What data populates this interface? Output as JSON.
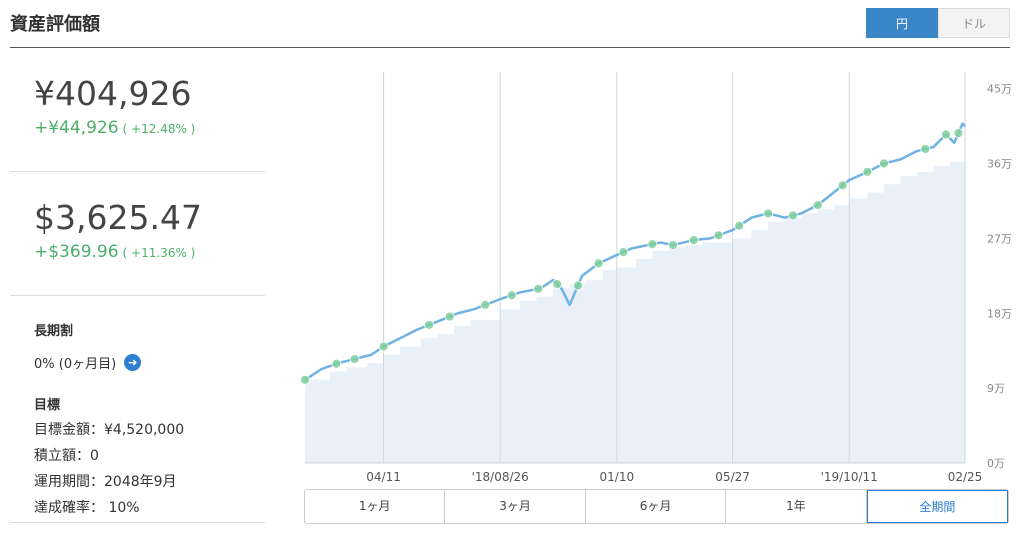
{
  "header": {
    "title": "資産評価額"
  },
  "currency_toggle": {
    "jpy": "円",
    "usd": "ドル",
    "selected": "円"
  },
  "valuation": {
    "jpy": {
      "value": "¥404,926",
      "change": "+¥44,926",
      "pct": "( +12.48% )"
    },
    "usd": {
      "value": "$3,625.47",
      "change": "+$369.96",
      "pct": "( +11.36% )"
    }
  },
  "long_term": {
    "title": "長期割",
    "value": "0% (0ヶ月目)"
  },
  "goal": {
    "title": "目標",
    "amount": "目標金額：¥4,520,000",
    "contribution": "積立額：0",
    "period": "運用期間：2048年9月",
    "probability": "達成確率： 10%"
  },
  "period_tabs": [
    "1ヶ月",
    "3ヶ月",
    "6ヶ月",
    "1年",
    "全期間"
  ],
  "selected_period": "全期間",
  "colors": {
    "accent": "#3a86c8",
    "positive": "#4caf6b",
    "line": "#6fb2e3",
    "area": "#e9f0f8",
    "marker": "#7fcf9a"
  },
  "chart_data": {
    "type": "line",
    "title": "",
    "xlabel": "",
    "ylabel": "",
    "ylim": [
      0,
      470000
    ],
    "y_ticks": [
      0,
      90000,
      180000,
      270000,
      360000,
      450000
    ],
    "y_tick_labels": [
      "0万",
      "9万",
      "18万",
      "27万",
      "36万",
      "45万"
    ],
    "x_ticks": [
      "04/11",
      "'18/08/26",
      "01/10",
      "05/27",
      "'19/10/11",
      "02/25"
    ],
    "x_tick_positions": [
      95,
      236,
      377,
      517,
      658,
      798
    ],
    "x_range": [
      0,
      798
    ],
    "series": [
      {
        "x": [
          0,
          20,
          40,
          60,
          80,
          95,
          115,
          135,
          160,
          185,
          205,
          236,
          260,
          285,
          300,
          310,
          320,
          335,
          355,
          377,
          395,
          415,
          430,
          445,
          470,
          490,
          517,
          540,
          560,
          580,
          600,
          620,
          658,
          680,
          700,
          720,
          740,
          760,
          775,
          785,
          795,
          798
        ],
        "values": [
          100000,
          113000,
          120000,
          125000,
          130000,
          140000,
          150000,
          160000,
          170000,
          180000,
          185000,
          197000,
          205000,
          210000,
          220000,
          210000,
          190000,
          225000,
          240000,
          250000,
          258000,
          262000,
          265000,
          262000,
          268000,
          270000,
          280000,
          295000,
          300000,
          295000,
          300000,
          310000,
          340000,
          350000,
          360000,
          365000,
          375000,
          380000,
          395000,
          385000,
          408000,
          405000
        ]
      },
      {
        "x": [
          0,
          30,
          50,
          75,
          95,
          115,
          140,
          160,
          180,
          200,
          236,
          260,
          280,
          300,
          320,
          340,
          360,
          377,
          400,
          420,
          440,
          460,
          480,
          517,
          540,
          560,
          580,
          600,
          620,
          640,
          658,
          680,
          700,
          720,
          740,
          760,
          780,
          798
        ],
        "values": [
          100000,
          110000,
          115000,
          120000,
          130000,
          140000,
          150000,
          155000,
          165000,
          172000,
          185000,
          195000,
          200000,
          210000,
          215000,
          220000,
          232000,
          235000,
          245000,
          255000,
          260000,
          262000,
          265000,
          270000,
          280000,
          290000,
          295000,
          300000,
          305000,
          310000,
          318000,
          325000,
          335000,
          345000,
          350000,
          357000,
          362000,
          367000
        ]
      }
    ],
    "markers_x": [
      0,
      38,
      60,
      95,
      150,
      175,
      218,
      250,
      282,
      305,
      330,
      355,
      385,
      420,
      445,
      470,
      500,
      525,
      560,
      590,
      620,
      650,
      680,
      700,
      750,
      775,
      790
    ]
  }
}
